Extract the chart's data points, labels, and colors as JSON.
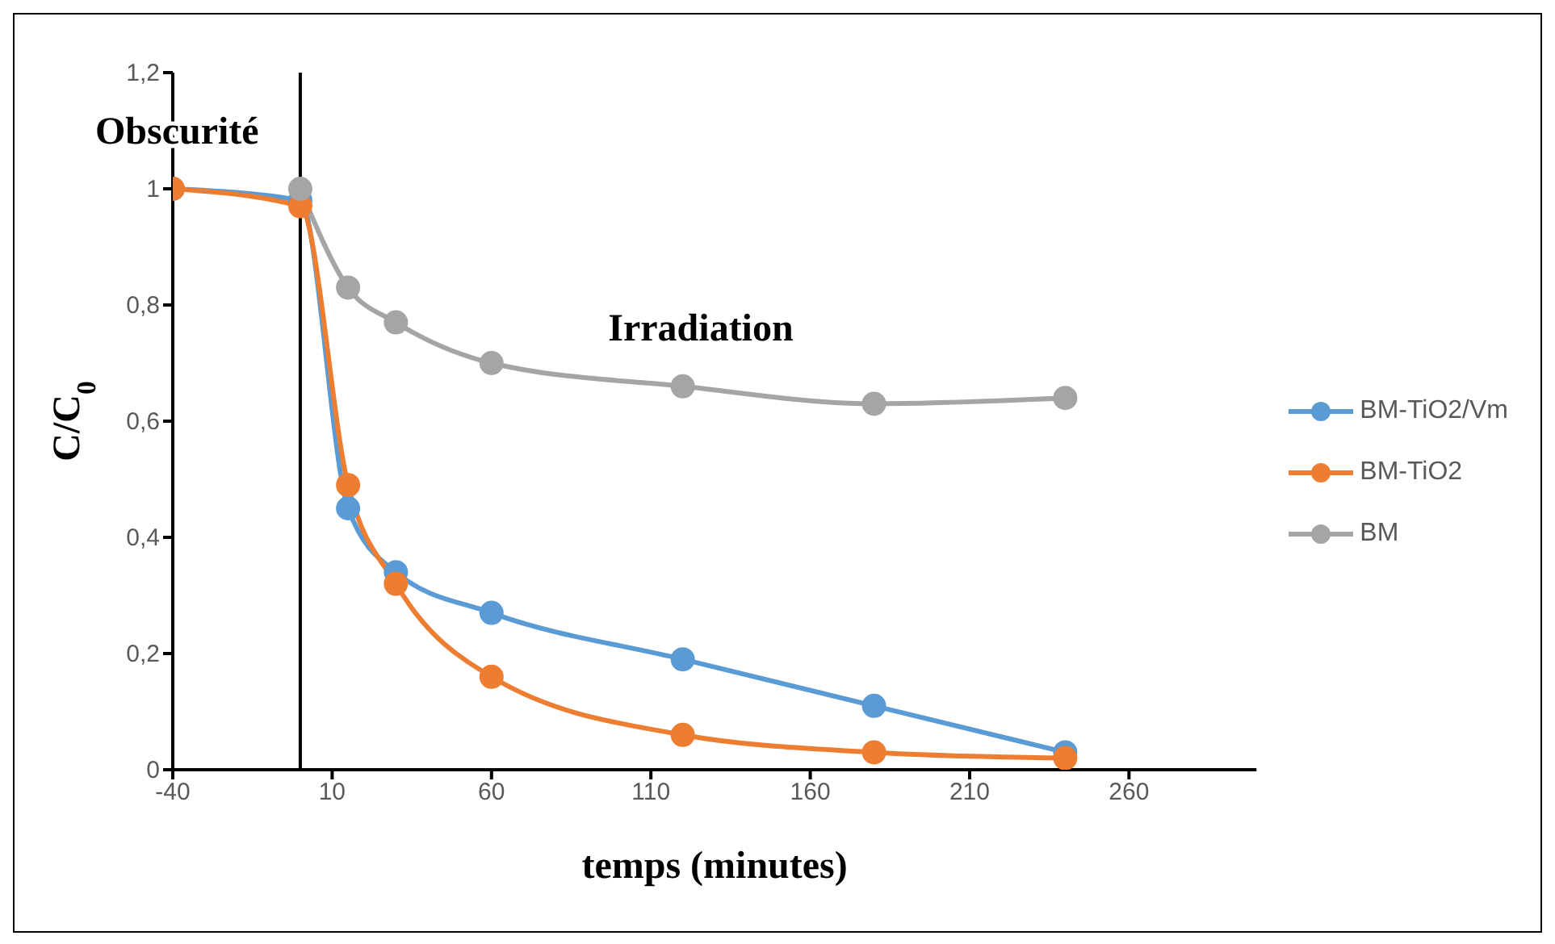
{
  "chart_data": {
    "type": "line",
    "xlabel": "temps (minutes)",
    "ylabel": "C/C$_{0}$",
    "x": [
      -40,
      0,
      15,
      30,
      60,
      120,
      180,
      240
    ],
    "series": [
      {
        "name": "BM-TiO2/Vm",
        "color": "#5b9bd5",
        "values": [
          1,
          0.98,
          0.45,
          0.34,
          0.27,
          0.19,
          0.11,
          0.03
        ]
      },
      {
        "name": "BM-TiO2",
        "color": "#ed7d31",
        "values": [
          1,
          0.97,
          0.49,
          0.32,
          0.16,
          0.06,
          0.03,
          0.02
        ]
      },
      {
        "name": "BM",
        "color": "#a5a5a5",
        "values": [
          null,
          1,
          0.83,
          0.77,
          0.7,
          0.66,
          0.63,
          0.64
        ]
      }
    ],
    "xlim": [
      -40,
      300
    ],
    "xticks": [
      -40,
      10,
      60,
      110,
      160,
      210,
      260
    ],
    "ylim": [
      0,
      1.2
    ],
    "yticks": [
      0,
      {
        "value": 0.2,
        "label": "0,2"
      },
      {
        "value": 0.4,
        "label": "0,4"
      },
      {
        "value": 0.6,
        "label": "0,6"
      },
      {
        "value": 0.8,
        "label": "0,8"
      },
      1,
      {
        "value": 1.2,
        "label": "1,2"
      }
    ],
    "ref_lines": [
      {
        "axis": "x",
        "value": 0,
        "color": "#000000"
      }
    ],
    "annotations": [
      "Obscurité",
      "Irradiation"
    ],
    "grid": false,
    "legend": "right",
    "marker": "circle",
    "line_style": "solid"
  }
}
